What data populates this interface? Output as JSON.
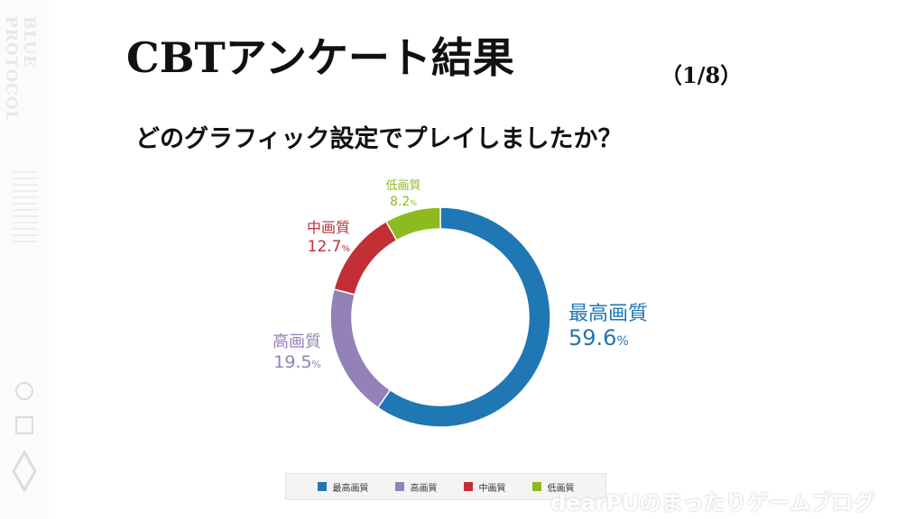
{
  "title": "CBTアンケート結果",
  "title_page": "（1/8）",
  "question": "どのグラフィック設定でプレイしましたか？",
  "sidebar": {
    "logo_text": "BLUE PROTOCOL"
  },
  "watermark": "dearPUのまったりゲームブログ",
  "chart_data": {
    "type": "pie",
    "style": "donut",
    "categories": [
      "最高画質",
      "高画質",
      "中画質",
      "低画質"
    ],
    "values": [
      59.6,
      19.5,
      12.7,
      8.2
    ],
    "value_labels": [
      "59.6",
      "19.5",
      "12.7",
      "8.2"
    ],
    "unit": "%",
    "colors": [
      "#1f77b4",
      "#9381b7",
      "#c22f35",
      "#8dbb1f"
    ],
    "legend": "bottom"
  }
}
